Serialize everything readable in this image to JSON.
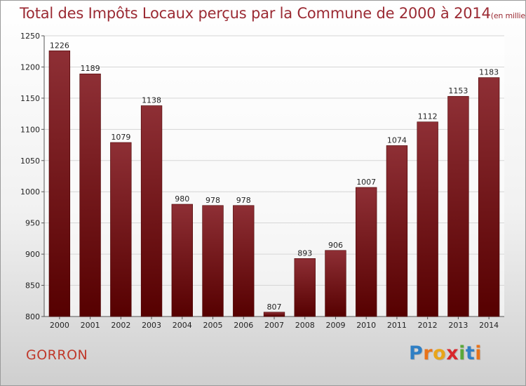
{
  "title": "Total des Impôts Locaux perçus par la Commune de 2000 à 2014",
  "title_unit": "(en milliers d'€)",
  "commune": "GORRON",
  "logo": {
    "text": "Proxiti",
    "letters": [
      {
        "ch": "P",
        "color": "#2f7fc4"
      },
      {
        "ch": "r",
        "color": "#e8731a"
      },
      {
        "ch": "o",
        "color": "#e8a51a"
      },
      {
        "ch": "x",
        "color": "#d8262c"
      },
      {
        "ch": "i",
        "color": "#5aa83a"
      },
      {
        "ch": "t",
        "color": "#2f7fc4"
      },
      {
        "ch": "i",
        "color": "#e8731a"
      }
    ]
  },
  "colors": {
    "bar_top": "#8e2f35",
    "bar_bottom": "#560000",
    "title": "#9b2a33",
    "commune": "#c0392b"
  },
  "chart_data": {
    "type": "bar",
    "categories": [
      "2000",
      "2001",
      "2002",
      "2003",
      "2004",
      "2005",
      "2006",
      "2007",
      "2008",
      "2009",
      "2010",
      "2011",
      "2012",
      "2013",
      "2014"
    ],
    "values": [
      1226,
      1189,
      1079,
      1138,
      980,
      978,
      978,
      807,
      893,
      906,
      1007,
      1074,
      1112,
      1153,
      1183
    ],
    "ylim": [
      800,
      1250
    ],
    "yticks": [
      800,
      850,
      900,
      950,
      1000,
      1050,
      1100,
      1150,
      1200,
      1250
    ],
    "grid": true,
    "title": "Total des Impôts Locaux perçus par la Commune de 2000 à 2014",
    "xlabel": "",
    "ylabel": ""
  }
}
